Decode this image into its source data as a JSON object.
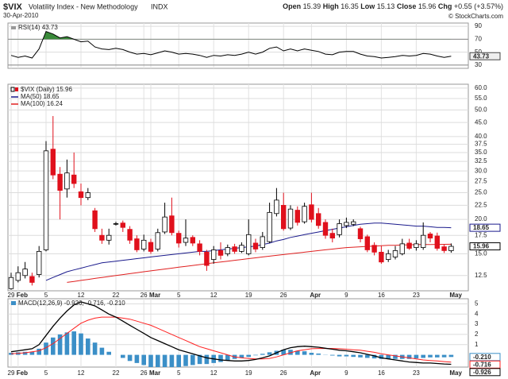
{
  "header": {
    "symbol": "$VIX",
    "name": "Volatility Index - New Methodology",
    "exchange": "INDX",
    "date": "30-Apr-2010",
    "quote_labels": {
      "open": "Open",
      "high": "High",
      "low": "Low",
      "close": "Close",
      "change": "Chg"
    },
    "change": {
      "value": 0.55,
      "label": "+0.55"
    },
    "change_pct": {
      "value": 3.57,
      "label": "(+3.57%)"
    },
    "source": "© StockCharts.com"
  },
  "chart_data": [
    {
      "type": "line",
      "title": "RSI(14) 43.73",
      "color": "#000000",
      "fill_color": "#3a8a3a",
      "overbought": 70,
      "oversold": 30,
      "ylim": [
        25,
        95
      ],
      "yticks": [
        30,
        50,
        70,
        90
      ],
      "grid": true,
      "values": [
        45,
        42,
        44,
        41,
        55,
        82,
        78,
        72,
        74,
        70,
        66,
        67,
        58,
        55,
        54,
        56,
        54,
        50,
        47,
        48,
        46,
        49,
        52,
        50,
        47,
        48,
        47,
        45,
        42,
        45,
        44,
        46,
        45,
        47,
        50,
        47,
        50,
        56,
        58,
        52,
        55,
        52,
        55,
        53,
        51,
        47,
        46,
        50,
        51,
        51,
        47,
        44,
        43,
        41,
        42,
        43,
        45,
        44,
        45,
        48,
        47,
        44,
        42,
        43.73
      ]
    },
    {
      "type": "candlestick",
      "title": "$VIX (Daily) 15.96",
      "up_color": "#000000",
      "down_color": "#e0101c",
      "log_scale": true,
      "grid": true,
      "ylim": [
        11,
        62
      ],
      "yticks": [
        12.5,
        {
          "value": 15,
          "label": "15.0"
        },
        17.5,
        {
          "value": 20,
          "label": "20.0"
        },
        22.5,
        {
          "value": 25,
          "label": "25.0"
        },
        27.5,
        {
          "value": 30,
          "label": "30.0"
        },
        32.5,
        {
          "value": 35,
          "label": "35.0"
        },
        37.5,
        {
          "value": 40,
          "label": "40.0"
        },
        {
          "value": 45,
          "label": "45.0"
        },
        {
          "value": 50,
          "label": "50.0"
        },
        {
          "value": 55,
          "label": "55.0"
        },
        {
          "value": 60,
          "label": "60.0"
        }
      ],
      "categories": [
        "29",
        "Feb",
        null,
        null,
        null,
        "5",
        null,
        null,
        null,
        null,
        "12",
        null,
        null,
        null,
        null,
        "22",
        null,
        null,
        null,
        "26",
        "Mar",
        null,
        null,
        null,
        "5",
        null,
        null,
        null,
        null,
        "12",
        null,
        null,
        null,
        null,
        "19",
        null,
        null,
        null,
        null,
        "26",
        null,
        null,
        null,
        "Apr",
        null,
        null,
        null,
        null,
        "9",
        null,
        null,
        null,
        null,
        "16",
        null,
        null,
        null,
        null,
        "23",
        null,
        null,
        null,
        null,
        null
      ],
      "axis_end_label": "May",
      "open": [
        11.2,
        12.0,
        12.5,
        12.4,
        12.6,
        15.5,
        36,
        29.2,
        25.8,
        29,
        25.2,
        24.0,
        21.5,
        17.5,
        16.8,
        19.2,
        19.4,
        18.4,
        17,
        15.6,
        16.5,
        15.6,
        18,
        20.6,
        17.8,
        16.5,
        17.2,
        16.3,
        15.2,
        14.3,
        15.4,
        15,
        15.9,
        15.3,
        15,
        16.4,
        15.8,
        16.6,
        21,
        22.5,
        18.6,
        21.6,
        19.6,
        22.6,
        21,
        19.5,
        17.8,
        17.6,
        19.0,
        19.2,
        18.5,
        17.3,
        16.1,
        15.2,
        14.3,
        14.6,
        15,
        16.4,
        15.8,
        15.8,
        17.7,
        17.4,
        15.9,
        15.39
      ],
      "high": [
        12.8,
        13.5,
        14,
        12.8,
        16,
        38.5,
        47.5,
        31,
        33,
        35,
        27,
        26,
        22,
        18.5,
        18.5,
        19.6,
        19.8,
        18.9,
        17.5,
        17.6,
        17,
        18.5,
        23,
        24,
        18.2,
        20,
        17.5,
        16.8,
        15.5,
        16,
        16.5,
        16.2,
        16.3,
        16.5,
        20,
        17,
        18,
        23,
        26,
        25,
        22.5,
        22.3,
        23,
        25,
        22,
        20,
        18.5,
        20,
        20.3,
        20,
        18.8,
        17.6,
        16.5,
        16,
        15.5,
        16,
        17,
        17,
        16.8,
        19.5,
        18,
        17.9,
        16.2,
        16.35
      ],
      "low": [
        11.1,
        11.8,
        12.2,
        11.5,
        12.3,
        15.3,
        28,
        20,
        24,
        26,
        22.5,
        23.5,
        18,
        16.3,
        16.2,
        19.0,
        18.0,
        16.3,
        15.2,
        15.3,
        15,
        15.3,
        17.7,
        17.5,
        15.8,
        16,
        16,
        14.8,
        13,
        13.8,
        14.3,
        14.7,
        15,
        15.1,
        14.8,
        15.2,
        15.5,
        16.4,
        20.5,
        18.2,
        18.3,
        19,
        19.3,
        19.5,
        18.5,
        17,
        16.5,
        17.2,
        18.6,
        18.9,
        16.5,
        15.2,
        14.8,
        13.8,
        14,
        14.3,
        14.8,
        15.5,
        15.4,
        15.5,
        16.5,
        15.4,
        15.1,
        15.13
      ],
      "close": [
        12.3,
        12.8,
        13.2,
        11.8,
        15.3,
        35.5,
        29,
        25.5,
        29.5,
        27,
        24,
        25.0,
        18.5,
        16.8,
        17.5,
        19.3,
        18.7,
        16.8,
        15.5,
        16.8,
        15.3,
        17.9,
        20.4,
        17.9,
        16.4,
        17.1,
        16.4,
        15.3,
        13.6,
        15.5,
        14.8,
        15.8,
        15.3,
        16.1,
        17.6,
        15.6,
        17.3,
        21.2,
        23.5,
        18.5,
        21.8,
        19.5,
        22.3,
        20,
        19,
        17.5,
        17.1,
        19.3,
        19.5,
        19.6,
        17,
        15.5,
        15.2,
        14,
        15,
        15.4,
        16.3,
        15.7,
        16.3,
        17.5,
        17.1,
        15.7,
        15.4,
        15.96
      ],
      "series": [
        {
          "name": "MA(50) 18.65",
          "color": "#1a1a8c",
          "values": [
            null,
            null,
            null,
            null,
            null,
            12.0,
            12.3,
            12.6,
            12.9,
            13.1,
            13.3,
            13.5,
            13.7,
            13.9,
            14.0,
            14.1,
            14.2,
            14.3,
            14.4,
            14.5,
            14.6,
            14.7,
            14.8,
            14.9,
            15.0,
            15.1,
            15.2,
            15.3,
            15.3,
            15.4,
            15.5,
            15.6,
            15.7,
            15.8,
            15.9,
            16.0,
            16.2,
            16.4,
            16.7,
            16.9,
            17.2,
            17.4,
            17.6,
            17.8,
            18.0,
            18.2,
            18.4,
            18.6,
            18.8,
            19.0,
            19.2,
            19.3,
            19.4,
            19.4,
            19.3,
            19.2,
            19.1,
            19.0,
            18.9,
            18.9,
            18.8,
            18.7,
            18.7,
            18.65
          ]
        },
        {
          "name": "MA(100) 16.24",
          "color": "#e02020",
          "values": [
            null,
            null,
            null,
            null,
            null,
            null,
            null,
            null,
            11.8,
            11.9,
            12.0,
            12.1,
            12.2,
            12.3,
            12.4,
            12.5,
            12.6,
            12.7,
            12.8,
            12.9,
            13.0,
            13.1,
            13.2,
            13.3,
            13.4,
            13.5,
            13.6,
            13.7,
            13.8,
            13.9,
            14.0,
            14.1,
            14.2,
            14.3,
            14.4,
            14.5,
            14.6,
            14.7,
            14.8,
            14.9,
            15.0,
            15.1,
            15.2,
            15.3,
            15.4,
            15.5,
            15.6,
            15.7,
            15.8,
            15.85,
            15.9,
            15.95,
            16.0,
            16.05,
            16.1,
            16.1,
            16.15,
            16.15,
            16.2,
            16.2,
            16.2,
            16.22,
            16.23,
            16.24
          ]
        }
      ]
    },
    {
      "type": "macd",
      "title": "MACD(12,26,9) -0.926, -0.716, -0.210",
      "grid": true,
      "ylim": [
        -1.2,
        5.5
      ],
      "yticks": [
        1,
        2,
        3,
        4,
        5
      ],
      "macd": {
        "color": "#000000",
        "values": [
          0.3,
          0.4,
          0.5,
          0.6,
          1.0,
          1.9,
          2.8,
          3.6,
          4.3,
          4.9,
          5.2,
          5.0,
          4.8,
          4.4,
          4.0,
          3.7,
          3.3,
          2.9,
          2.5,
          2.1,
          1.7,
          1.4,
          1.1,
          0.8,
          0.5,
          0.3,
          0.1,
          -0.1,
          -0.3,
          -0.4,
          -0.5,
          -0.55,
          -0.6,
          -0.6,
          -0.55,
          -0.45,
          -0.3,
          -0.1,
          0.2,
          0.5,
          0.7,
          0.8,
          0.85,
          0.8,
          0.75,
          0.65,
          0.55,
          0.45,
          0.4,
          0.3,
          0.2,
          0.05,
          -0.1,
          -0.3,
          -0.4,
          -0.5,
          -0.6,
          -0.7,
          -0.75,
          -0.8,
          -0.8,
          -0.85,
          -0.9,
          -0.926
        ]
      },
      "signal": {
        "color": "#ff2020",
        "values": [
          0.1,
          0.15,
          0.2,
          0.3,
          0.4,
          0.7,
          1.1,
          1.6,
          2.1,
          2.6,
          3.1,
          3.4,
          3.6,
          3.7,
          3.7,
          3.7,
          3.6,
          3.5,
          3.3,
          3.1,
          2.9,
          2.6,
          2.3,
          2.0,
          1.7,
          1.4,
          1.1,
          0.8,
          0.6,
          0.4,
          0.2,
          0.0,
          -0.2,
          -0.3,
          -0.35,
          -0.4,
          -0.4,
          -0.35,
          -0.2,
          0.0,
          0.2,
          0.4,
          0.5,
          0.6,
          0.62,
          0.63,
          0.62,
          0.6,
          0.55,
          0.5,
          0.45,
          0.35,
          0.25,
          0.1,
          0.0,
          -0.1,
          -0.2,
          -0.3,
          -0.4,
          -0.5,
          -0.55,
          -0.6,
          -0.66,
          -0.716
        ]
      },
      "histogram": {
        "color": "#3b8fc7",
        "last_label": "-0.210",
        "values": [
          0.2,
          0.25,
          0.3,
          0.3,
          0.6,
          1.2,
          1.7,
          2.0,
          2.2,
          2.3,
          2.1,
          1.6,
          1.2,
          0.7,
          0.3,
          0.0,
          -0.3,
          -0.6,
          -0.8,
          -1.0,
          -1.2,
          -1.2,
          -1.2,
          -1.2,
          -1.2,
          -1.1,
          -1.0,
          -0.9,
          -0.9,
          -0.8,
          -0.7,
          -0.55,
          -0.4,
          -0.3,
          -0.2,
          -0.05,
          0.1,
          0.25,
          0.4,
          0.5,
          0.5,
          0.4,
          0.35,
          0.2,
          0.13,
          0.02,
          -0.07,
          -0.15,
          -0.15,
          -0.2,
          -0.25,
          -0.3,
          -0.35,
          -0.4,
          -0.4,
          -0.4,
          -0.4,
          -0.4,
          -0.35,
          -0.3,
          -0.25,
          -0.25,
          -0.24,
          -0.21
        ]
      }
    }
  ]
}
